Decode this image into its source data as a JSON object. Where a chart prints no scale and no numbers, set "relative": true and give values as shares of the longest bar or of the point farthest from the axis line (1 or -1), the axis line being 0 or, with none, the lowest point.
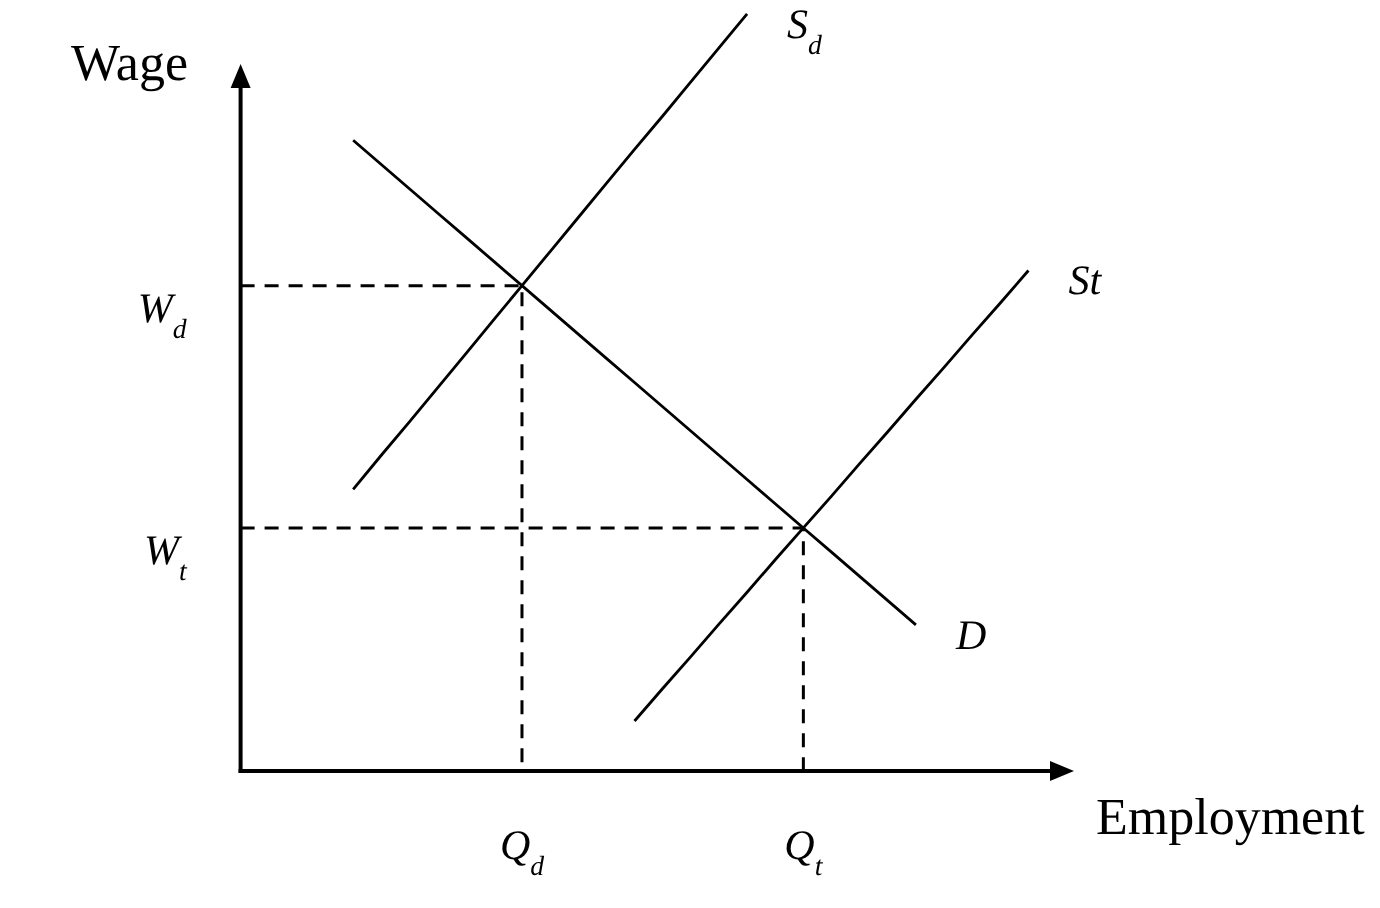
{
  "chart_data": {
    "type": "line",
    "relative": true,
    "xlabel": "Employment",
    "ylabel": "Wage",
    "categories": [
      null,
      null,
      null,
      null,
      null,
      null,
      null,
      null,
      null,
      null,
      "Q$_{d}$",
      null,
      null,
      null,
      null,
      null,
      null,
      null,
      null,
      null,
      "Q$_{t}$",
      null,
      null,
      null,
      null,
      null,
      null,
      null,
      null,
      null
    ],
    "series": [
      {
        "name": "S$_{d}$",
        "color": "#000000",
        "values": [
          null,
          null,
          null,
          null,
          0.372,
          0.417,
          0.461,
          0.506,
          0.551,
          0.596,
          0.641,
          0.686,
          0.731,
          0.776,
          0.821,
          0.865,
          0.91,
          0.955,
          1,
          null,
          null,
          null,
          null,
          null,
          null,
          null,
          null,
          null,
          null,
          null
        ]
      },
      {
        "name": "St",
        "color": "#000000",
        "values": [
          null,
          null,
          null,
          null,
          null,
          null,
          null,
          null,
          null,
          null,
          null,
          null,
          null,
          null,
          0.066,
          0.109,
          0.151,
          0.194,
          0.236,
          0.279,
          0.321,
          0.363,
          0.406,
          0.448,
          0.491,
          0.533,
          0.576,
          0.618,
          0.661,
          null
        ]
      },
      {
        "name": "D",
        "color": "#000000",
        "values": [
          null,
          null,
          null,
          null,
          0.833,
          0.801,
          0.769,
          0.737,
          0.705,
          0.673,
          0.641,
          0.609,
          0.577,
          0.545,
          0.513,
          0.481,
          0.449,
          0.417,
          0.385,
          0.353,
          0.321,
          0.289,
          0.257,
          0.225,
          0.193,
          null,
          null,
          null,
          null,
          null
        ]
      },
      {
        "type": "step",
        "color": "#000000",
        "line_style": "dashed",
        "values": [
          0.641,
          0.641,
          0.641,
          0.641,
          0.641,
          0.641,
          0.641,
          0.641,
          0.641,
          0.641,
          0,
          null,
          null,
          null,
          null,
          null,
          null,
          null,
          null,
          null,
          null,
          null,
          null,
          null,
          null,
          null,
          null,
          null,
          null,
          null
        ]
      },
      {
        "type": "step",
        "color": "#000000",
        "line_style": "dashed",
        "values": [
          0.321,
          0.321,
          0.321,
          0.321,
          0.321,
          0.321,
          0.321,
          0.321,
          0.321,
          0.321,
          0.321,
          0.321,
          0.321,
          0.321,
          0.321,
          0.321,
          0.321,
          0.321,
          0.321,
          0.321,
          0,
          null,
          null,
          null,
          null,
          null,
          null,
          null,
          null,
          null
        ]
      }
    ],
    "annotations": [
      "W$_{d}$",
      "W$_{t}$"
    ]
  }
}
